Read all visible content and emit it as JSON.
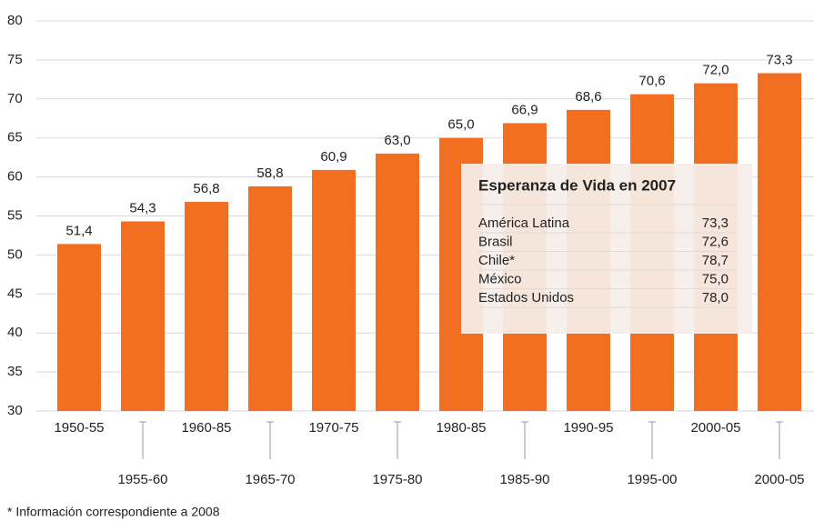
{
  "chart_data": {
    "type": "bar",
    "categories": [
      "1950-55",
      "1955-60",
      "1960-85",
      "1965-70",
      "1970-75",
      "1975-80",
      "1980-85",
      "1985-90",
      "1990-95",
      "1995-00",
      "2000-05",
      "2000-05"
    ],
    "values": [
      51.4,
      54.3,
      56.8,
      58.8,
      60.9,
      63.0,
      65.0,
      66.9,
      68.6,
      70.6,
      72.0,
      73.3
    ],
    "value_labels": [
      "51,4",
      "54,3",
      "56,8",
      "58,8",
      "60,9",
      "63,0",
      "65,0",
      "66,9",
      "68,6",
      "70,6",
      "72,0",
      "73,3"
    ],
    "color": "#f26f21",
    "ylim": [
      30,
      80
    ],
    "yticks": [
      30,
      35,
      40,
      45,
      50,
      55,
      60,
      65,
      70,
      75,
      80
    ],
    "grid": true,
    "inset": {
      "title": "Esperanza de Vida en 2007",
      "rows": [
        [
          "América Latina",
          "73,3"
        ],
        [
          "Brasil",
          "72,6"
        ],
        [
          "Chile*",
          "78,7"
        ],
        [
          "México",
          "75,0"
        ],
        [
          "Estados Unidos",
          "78,0"
        ]
      ]
    },
    "footnote": "* Información correspondiente a 2008"
  }
}
